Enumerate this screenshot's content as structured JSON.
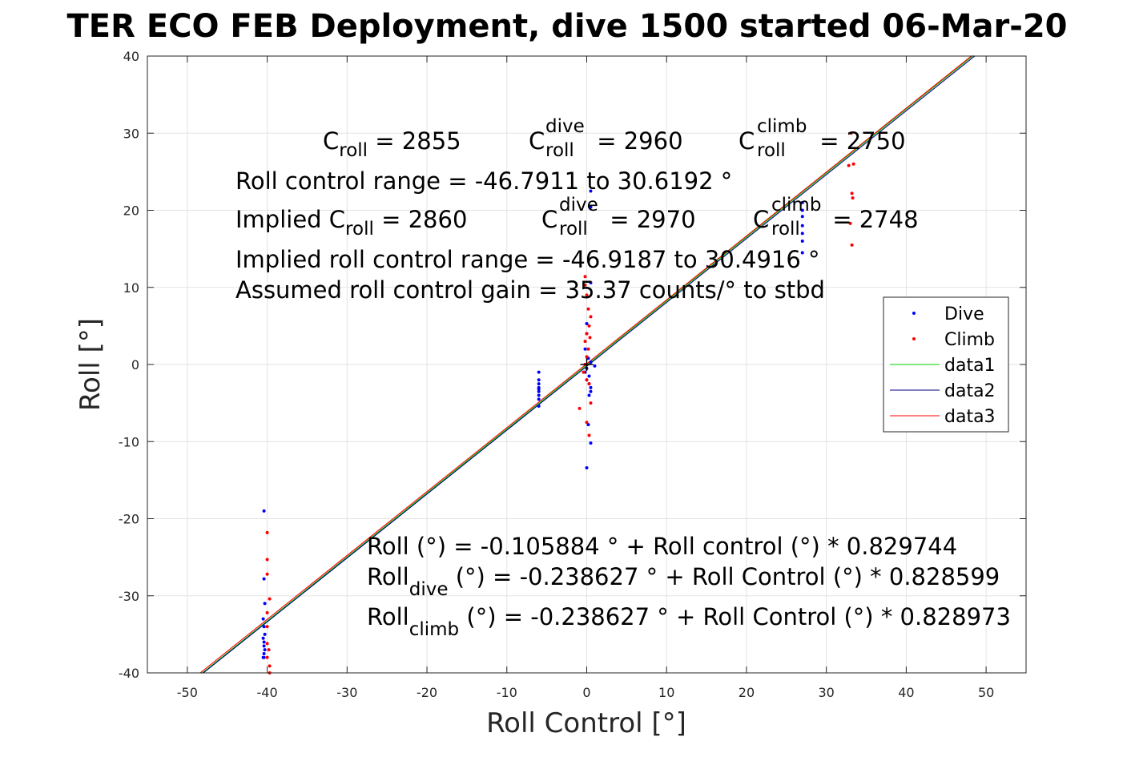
{
  "chart_data": {
    "type": "scatter",
    "title": "TER ECO FEB Deployment, dive 1500 started 06-Mar-20",
    "xlabel": "Roll Control [°]",
    "ylabel": "Roll [°]",
    "xlim": [
      -55,
      55
    ],
    "ylim": [
      -40,
      40
    ],
    "xticks": [
      -50,
      -40,
      -30,
      -20,
      -10,
      0,
      10,
      20,
      30,
      40,
      50
    ],
    "yticks": [
      -40,
      -30,
      -20,
      -10,
      0,
      10,
      20,
      30,
      40
    ],
    "xtick_labels": [
      "-50",
      "-40",
      "-30",
      "-20",
      "-10",
      "0",
      "10",
      "20",
      "30",
      "40",
      "50"
    ],
    "ytick_labels": [
      "-40",
      "-30",
      "-20",
      "-10",
      "0",
      "10",
      "20",
      "30",
      "40"
    ],
    "grid": true,
    "legend_position": "right",
    "series": [
      {
        "name": "Dive",
        "kind": "points",
        "color": "#0000ff",
        "x": [
          -40.4,
          -40.4,
          -40.3,
          -40.5,
          -40.4,
          -40.3,
          -40.5,
          -40.4,
          -40.4,
          -40.3,
          -40.4,
          -40.5,
          -40.4,
          -6.0,
          -6.0,
          -6.0,
          -6.0,
          -6.0,
          -6.0,
          -6.0,
          -6.0,
          -6.0,
          0.5,
          0.5,
          0.5,
          0.0,
          0.0,
          -0.2,
          0.2,
          0.5,
          0.0,
          -0.2,
          0.3,
          0.0,
          0.3,
          0.5,
          0.5,
          0.3,
          0.2,
          0.5,
          0.0,
          1.0,
          27.0,
          27.0,
          27.0,
          27.0,
          27.0,
          27.0,
          27.0
        ],
        "y": [
          -19,
          -27.8,
          -31,
          -33,
          -34,
          -35,
          -35.5,
          -36,
          -36.5,
          -37,
          -37.5,
          -38,
          -38,
          -1,
          -2,
          -2.5,
          -3,
          -3.5,
          -4,
          -4.5,
          -5.4,
          -3.2,
          22.5,
          20.4,
          10.6,
          5.3,
          4.0,
          2.0,
          0.8,
          0.3,
          -0.5,
          -1.0,
          -1.5,
          -2.0,
          -2.5,
          -3.0,
          -3.5,
          -4.0,
          -7.8,
          -10.2,
          -13.4,
          -0.2,
          21,
          20.0,
          19.2,
          18.0,
          17.0,
          16.0,
          14.5
        ]
      },
      {
        "name": "Climb",
        "kind": "points",
        "color": "#ff0000",
        "x": [
          -40.0,
          -40.0,
          -40.0,
          -39.7,
          -40.0,
          -40.0,
          -40.0,
          -39.8,
          -40.0,
          -39.7,
          -39.7,
          -0.2,
          -0.2,
          0.0,
          0.2,
          0.5,
          0.3,
          0.0,
          0.4,
          -0.2,
          0.2,
          0.0,
          -0.2,
          -0.4,
          0.0,
          0.3,
          -0.9,
          0.5,
          0.0,
          0.3,
          33.1,
          32.8,
          33.4,
          33.2,
          33.3,
          33.0,
          33.2
        ],
        "y": [
          -21.8,
          -25.3,
          -27.2,
          -30.4,
          -32.2,
          -34.0,
          -36.2,
          -37.0,
          -38.0,
          -39.1,
          -40.0,
          11.4,
          10.3,
          9.0,
          7.2,
          6.2,
          5.0,
          4.0,
          3.5,
          3.0,
          2.0,
          1.0,
          0.0,
          -1.0,
          -2.0,
          -2.5,
          -5.7,
          -5.0,
          -7.5,
          -9.2,
          30.0,
          25.8,
          26.0,
          22.2,
          21.6,
          18.3,
          15.5
        ]
      },
      {
        "name": "data1",
        "kind": "line",
        "color": "#00cc00",
        "x": [
          -48.2,
          48.4
        ],
        "y": [
          -40.07,
          40.09
        ]
      },
      {
        "name": "data2",
        "kind": "line",
        "color": "#000080",
        "x": [
          -48.0,
          48.6
        ],
        "y": [
          -40.01,
          40.03
        ]
      },
      {
        "name": "data3",
        "kind": "line",
        "color": "#ff0000",
        "x": [
          -48.4,
          48.2
        ],
        "y": [
          -40.02,
          40.04
        ]
      }
    ],
    "center_marker": {
      "x": 0,
      "y": 0,
      "color": "#000000"
    },
    "annotations": {
      "top": {
        "line1": [
          {
            "c": "C",
            "sub": "roll",
            "val": " = 2855"
          },
          {
            "c": "C",
            "sub": "roll",
            "sup": "dive",
            "val": " = 2960"
          },
          {
            "c": "C",
            "sub": "roll",
            "sup": "climb",
            "val": " = 2750"
          }
        ],
        "line2": "Roll control range = -46.7911 to 30.6192 °",
        "line3": [
          {
            "pre": "Implied C",
            "sub": "roll",
            "val": " = 2860"
          },
          {
            "c": "C",
            "sub": "roll",
            "sup": "dive",
            "val": " = 2970"
          },
          {
            "c": "C",
            "sub": "roll",
            "sup": "climb",
            "val": " = 2748"
          }
        ],
        "line4": "Implied roll control range = -46.9187 to 30.4916 °",
        "line5": "Assumed roll control gain = 35.37 counts/° to stbd"
      },
      "bottom": {
        "line1": "Roll (°) = -0.105884 ° + Roll control (°) * 0.829744",
        "line2": {
          "pre": "Roll",
          "sub": "dive",
          "rest": " (°) = -0.238627 ° + Roll Control (°) * 0.828599"
        },
        "line3": {
          "pre": "Roll",
          "sub": "climb",
          "rest": " (°) = -0.238627 ° + Roll Control (°) * 0.828973"
        }
      }
    }
  }
}
